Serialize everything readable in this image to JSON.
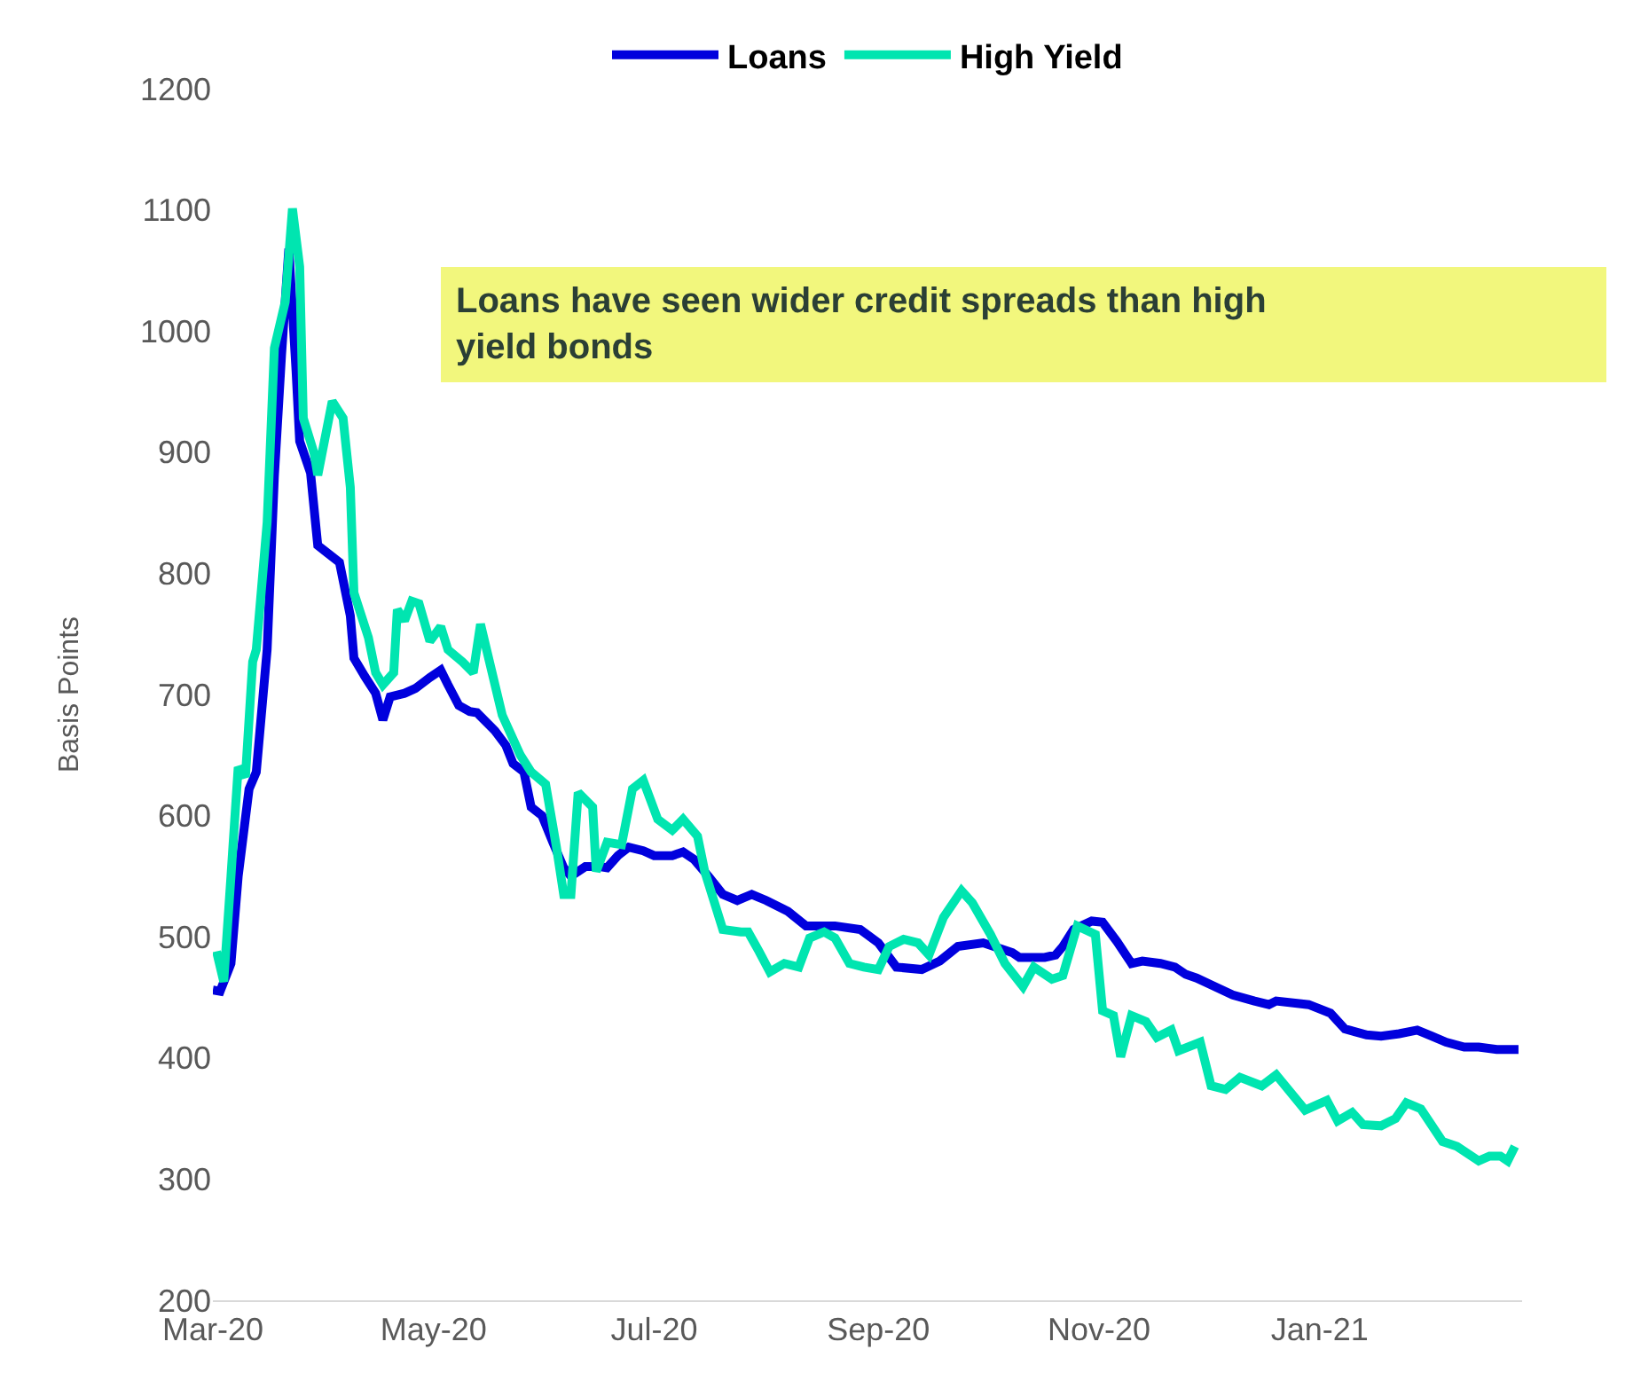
{
  "chart_data": {
    "type": "line",
    "ylabel": "Basis Points",
    "annotations": [
      "Loans have seen wider credit spreads than high yield bonds"
    ],
    "xticks": [
      {
        "value": "2020-03-01",
        "label": "Mar-20"
      },
      {
        "value": "2020-05-01",
        "label": "May-20"
      },
      {
        "value": "2020-07-01",
        "label": "Jul-20"
      },
      {
        "value": "2020-09-01",
        "label": "Sep-20"
      },
      {
        "value": "2020-11-01",
        "label": "Nov-20"
      },
      {
        "value": "2021-01-01",
        "label": "Jan-21"
      }
    ],
    "xlim": [
      "2020-03-01",
      "2021-02-26"
    ],
    "ylim": [
      200,
      1200
    ],
    "yticks": [
      200,
      300,
      400,
      500,
      600,
      700,
      800,
      900,
      1000,
      1100,
      1200
    ],
    "grid": false,
    "legend": "top",
    "marker": "none",
    "line_style": "solid",
    "series": [
      {
        "name": "Loans",
        "color": "#0000dd",
        "x": [
          "2020-03-01",
          "2020-03-03",
          "2020-03-06",
          "2020-03-08",
          "2020-03-11",
          "2020-03-13",
          "2020-03-16",
          "2020-03-18",
          "2020-03-20",
          "2020-03-22",
          "2020-03-24",
          "2020-03-25",
          "2020-03-28",
          "2020-03-30",
          "2020-04-02",
          "2020-04-05",
          "2020-04-08",
          "2020-04-09",
          "2020-04-12",
          "2020-04-15",
          "2020-04-17",
          "2020-04-19",
          "2020-04-23",
          "2020-04-26",
          "2020-04-30",
          "2020-05-03",
          "2020-05-05",
          "2020-05-08",
          "2020-05-11",
          "2020-05-13",
          "2020-05-16",
          "2020-05-18",
          "2020-05-21",
          "2020-05-23",
          "2020-05-26",
          "2020-05-28",
          "2020-05-31",
          "2020-06-03",
          "2020-06-06",
          "2020-06-08",
          "2020-06-12",
          "2020-06-16",
          "2020-06-18",
          "2020-06-21",
          "2020-06-24",
          "2020-06-28",
          "2020-07-01",
          "2020-07-06",
          "2020-07-09",
          "2020-07-12",
          "2020-07-16",
          "2020-07-20",
          "2020-07-24",
          "2020-07-28",
          "2020-08-01",
          "2020-08-07",
          "2020-08-12",
          "2020-08-20",
          "2020-08-27",
          "2020-09-01",
          "2020-09-06",
          "2020-09-13",
          "2020-09-18",
          "2020-09-23",
          "2020-09-30",
          "2020-10-08",
          "2020-10-10",
          "2020-10-17",
          "2020-10-20",
          "2020-10-22",
          "2020-10-25",
          "2020-10-30",
          "2020-11-02",
          "2020-11-06",
          "2020-11-10",
          "2020-11-13",
          "2020-11-18",
          "2020-11-22",
          "2020-11-25",
          "2020-11-28",
          "2020-12-03",
          "2020-12-08",
          "2020-12-14",
          "2020-12-18",
          "2020-12-20",
          "2020-12-29",
          "2021-01-04",
          "2021-01-08",
          "2021-01-14",
          "2021-01-18",
          "2021-01-23",
          "2021-01-28",
          "2021-02-01",
          "2021-02-05",
          "2021-02-10",
          "2021-02-14",
          "2021-02-19",
          "2021-02-25"
        ],
        "values": [
          456,
          455,
          478,
          550,
          622,
          636,
          737,
          880,
          981,
          1068,
          967,
          909,
          883,
          823,
          816,
          809,
          765,
          730,
          715,
          701,
          679,
          698,
          701,
          705,
          714,
          720,
          708,
          691,
          686,
          685,
          676,
          670,
          658,
          643,
          636,
          607,
          600,
          578,
          557,
          550,
          558,
          558,
          557,
          567,
          574,
          571,
          567,
          567,
          570,
          564,
          550,
          535,
          530,
          535,
          530,
          521,
          509,
          509,
          506,
          495,
          475,
          473,
          480,
          492,
          495,
          487,
          483,
          483,
          485,
          492,
          506,
          513,
          512,
          496,
          478,
          480,
          478,
          475,
          469,
          466,
          459,
          452,
          447,
          444,
          447,
          444,
          437,
          424,
          419,
          418,
          420,
          423,
          418,
          413,
          409,
          409,
          407,
          407
        ]
      },
      {
        "name": "High Yield",
        "color": "#00e5b0",
        "x": [
          "2020-03-02",
          "2020-03-04",
          "2020-03-06",
          "2020-03-08",
          "2020-03-10",
          "2020-03-12",
          "2020-03-13",
          "2020-03-16",
          "2020-03-18",
          "2020-03-21",
          "2020-03-23",
          "2020-03-25",
          "2020-03-26",
          "2020-03-29",
          "2020-03-30",
          "2020-04-03",
          "2020-04-06",
          "2020-04-08",
          "2020-04-09",
          "2020-04-13",
          "2020-04-15",
          "2020-04-17",
          "2020-04-20",
          "2020-04-21",
          "2020-04-23",
          "2020-04-25",
          "2020-04-27",
          "2020-04-30",
          "2020-05-03",
          "2020-05-05",
          "2020-05-09",
          "2020-05-12",
          "2020-05-14",
          "2020-05-18",
          "2020-05-20",
          "2020-05-25",
          "2020-05-28",
          "2020-06-01",
          "2020-06-04",
          "2020-06-06",
          "2020-06-08",
          "2020-06-10",
          "2020-06-14",
          "2020-06-15",
          "2020-06-18",
          "2020-06-22",
          "2020-06-25",
          "2020-06-28",
          "2020-07-02",
          "2020-07-06",
          "2020-07-09",
          "2020-07-13",
          "2020-07-15",
          "2020-07-20",
          "2020-07-25",
          "2020-07-27",
          "2020-07-30",
          "2020-08-02",
          "2020-08-06",
          "2020-08-10",
          "2020-08-13",
          "2020-08-17",
          "2020-08-20",
          "2020-08-24",
          "2020-08-28",
          "2020-09-01",
          "2020-09-04",
          "2020-09-08",
          "2020-09-12",
          "2020-09-15",
          "2020-09-19",
          "2020-09-24",
          "2020-09-27",
          "2020-10-02",
          "2020-10-06",
          "2020-10-11",
          "2020-10-14",
          "2020-10-19",
          "2020-10-22",
          "2020-10-26",
          "2020-10-31",
          "2020-11-02",
          "2020-11-05",
          "2020-11-07",
          "2020-11-10",
          "2020-11-14",
          "2020-11-17",
          "2020-11-21",
          "2020-11-23",
          "2020-11-29",
          "2020-12-02",
          "2020-12-06",
          "2020-12-10",
          "2020-12-16",
          "2020-12-20",
          "2020-12-28",
          "2021-01-03",
          "2021-01-06",
          "2021-01-10",
          "2021-01-13",
          "2021-01-18",
          "2021-01-22",
          "2021-01-25",
          "2021-01-29",
          "2021-02-04",
          "2021-02-08",
          "2021-02-14",
          "2021-02-17",
          "2021-02-20",
          "2021-02-22",
          "2021-02-24"
        ],
        "values": [
          488,
          463,
          550,
          640,
          632,
          727,
          737,
          842,
          986,
          1024,
          1101,
          1053,
          928,
          899,
          881,
          942,
          928,
          871,
          784,
          747,
          718,
          708,
          718,
          770,
          761,
          777,
          775,
          744,
          756,
          737,
          727,
          718,
          758,
          708,
          683,
          650,
          636,
          626,
          574,
          535,
          535,
          619,
          607,
          554,
          578,
          576,
          622,
          629,
          597,
          588,
          597,
          583,
          554,
          506,
          504,
          504,
          488,
          471,
          478,
          475,
          499,
          504,
          499,
          478,
          475,
          473,
          492,
          498,
          495,
          485,
          516,
          538,
          528,
          502,
          478,
          459,
          475,
          465,
          468,
          509,
          502,
          439,
          435,
          401,
          435,
          430,
          417,
          423,
          406,
          413,
          377,
          374,
          384,
          377,
          386,
          357,
          365,
          348,
          355,
          345,
          344,
          350,
          363,
          358,
          331,
          327,
          315,
          319,
          319,
          315,
          327
        ]
      }
    ]
  }
}
